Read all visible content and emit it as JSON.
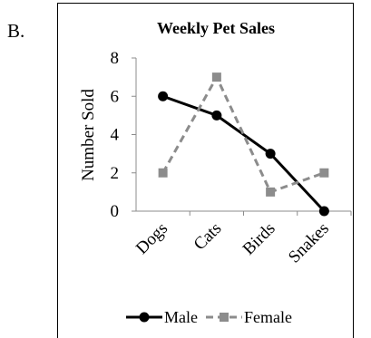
{
  "option_label": "B.",
  "chart_data": {
    "type": "line",
    "title": "Weekly Pet Sales",
    "xlabel": "",
    "ylabel": "Number Sold",
    "categories": [
      "Dogs",
      "Cats",
      "Birds",
      "Snakes"
    ],
    "ylim": [
      0,
      8
    ],
    "yticks": [
      "0",
      "2",
      "4",
      "6",
      "8"
    ],
    "grid": false,
    "legend_position": "bottom",
    "series": [
      {
        "name": "Male",
        "values": [
          6,
          5,
          3,
          0
        ],
        "color": "#000000",
        "style": "solid",
        "marker": "circle"
      },
      {
        "name": "Female",
        "values": [
          2,
          7,
          1,
          2
        ],
        "color": "#8c8c8c",
        "style": "dashed",
        "marker": "square"
      }
    ]
  }
}
